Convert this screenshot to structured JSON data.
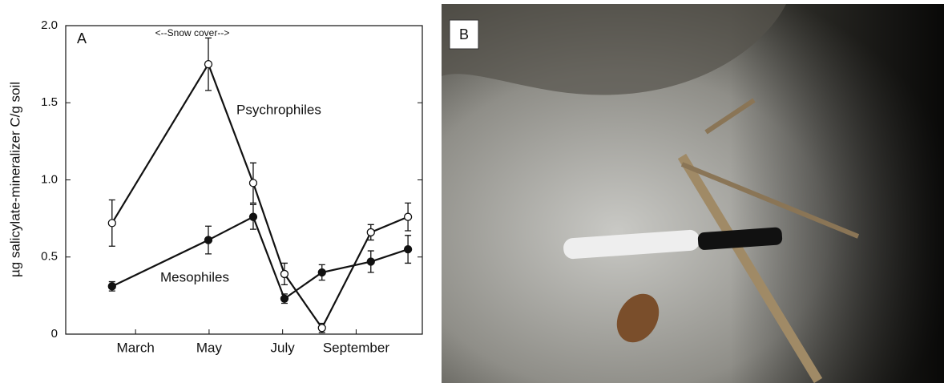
{
  "chart_data": {
    "type": "line",
    "panel_label": "A",
    "annotation": "<--Snow cover-->",
    "y_label": "µg salicylate-mineralizer C/g soil",
    "x": [
      2.36,
      4.98,
      6.2,
      7.05,
      8.07,
      9.4,
      10.41
    ],
    "xlim": [
      1.1,
      10.8
    ],
    "xticks": [
      {
        "value": 3,
        "label": "March"
      },
      {
        "value": 5,
        "label": "May"
      },
      {
        "value": 7,
        "label": "July"
      },
      {
        "value": 9,
        "label": "September"
      }
    ],
    "ylim": [
      0,
      2
    ],
    "yticks": [
      0,
      0.5,
      {
        "value": 1,
        "label": "1.0"
      },
      1.5,
      {
        "value": 2,
        "label": "2.0"
      }
    ],
    "series": [
      {
        "name": "Psychrophiles",
        "color": "#111111",
        "marker": "open",
        "values": [
          0.72,
          1.75,
          0.98,
          0.39,
          0.04,
          0.66,
          0.76
        ],
        "errors": [
          0.15,
          0.17,
          0.13,
          0.07,
          0.03,
          0.05,
          0.09
        ]
      },
      {
        "name": "Mesophiles",
        "color": "#111111",
        "marker": "filled",
        "values": [
          0.31,
          0.61,
          0.76,
          0.23,
          0.4,
          0.47,
          0.55
        ],
        "errors": [
          0.03,
          0.09,
          0.08,
          0.03,
          0.05,
          0.07,
          0.09
        ]
      }
    ]
  },
  "photo_panel": {
    "label": "B"
  }
}
